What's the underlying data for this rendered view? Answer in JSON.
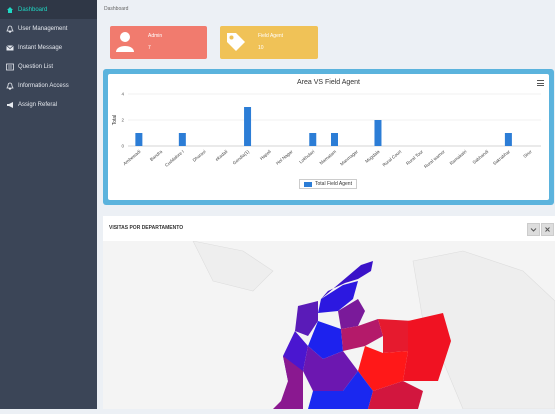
{
  "sidebar": {
    "items": [
      {
        "label": "Dashboard",
        "icon": "home-icon"
      },
      {
        "label": "User Management",
        "icon": "bell-icon"
      },
      {
        "label": "Instant Message",
        "icon": "envelope-icon"
      },
      {
        "label": "Question List",
        "icon": "list-icon"
      },
      {
        "label": "Information Access",
        "icon": "bell-icon"
      },
      {
        "label": "Assign Referal",
        "icon": "megaphone-icon"
      }
    ]
  },
  "breadcrumb": "Dashboard",
  "cards": {
    "admin": {
      "label": "Admin",
      "value": "7",
      "icon": "user-icon",
      "color": "#f17b6e"
    },
    "field": {
      "label": "Field Agent",
      "value": "10",
      "icon": "tag-icon",
      "color": "#f0c257"
    }
  },
  "chart_data": {
    "type": "bar",
    "title": "Area VS Field Agent",
    "ylabel": "Total",
    "ylim": [
      0,
      4
    ],
    "yticks": [
      "4",
      "2",
      "0"
    ],
    "categories": [
      "Ambewadi",
      "Bandra",
      "Cuddalore I",
      "Dharavi",
      "ekadali",
      "Gondia(1)",
      "Hapoli",
      "Hol Nagar",
      "Lokhulari",
      "Mamatam",
      "Manmagar",
      "Mugdala",
      "Rural Court",
      "Rural Tour",
      "Rural wamor",
      "Ramakatri",
      "Sabhandi",
      "Sakrabhar",
      "Sirur"
    ],
    "series": [
      {
        "name": "Total Field Agent",
        "values": [
          1,
          0,
          1,
          0,
          0,
          3,
          0,
          0,
          1,
          1,
          0,
          2,
          0,
          0,
          0,
          0,
          0,
          1,
          0
        ]
      }
    ],
    "legend": "bottom-center",
    "color": "#2c7dd6"
  },
  "map_panel": {
    "title": "VISITAS POR DEPARTAMENTO",
    "collapse_icon": "chevron-down-icon",
    "close_icon": "close-icon"
  }
}
